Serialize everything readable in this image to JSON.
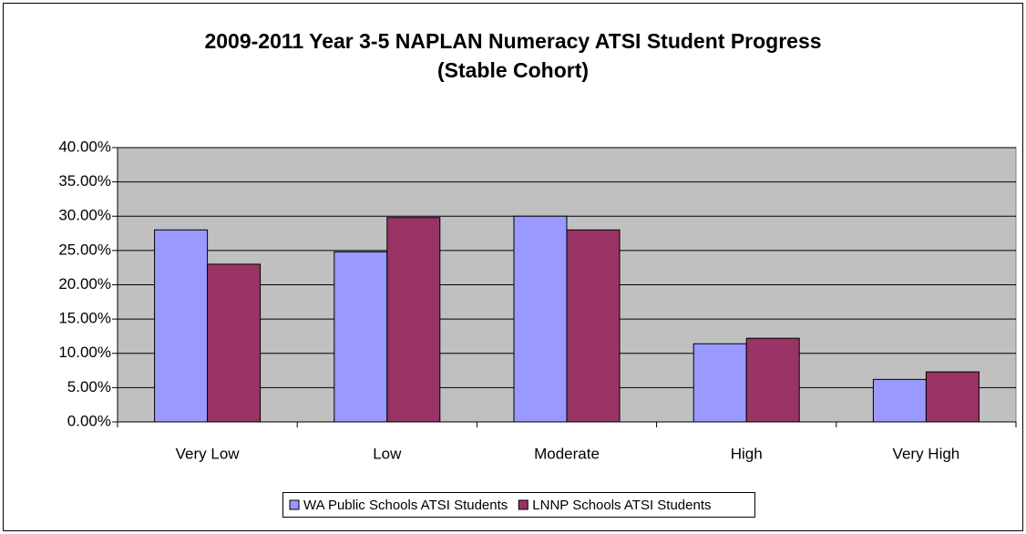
{
  "chart_data": {
    "type": "bar",
    "title": [
      "2009-2011 Year 3-5 NAPLAN Numeracy ATSI Student Progress",
      "(Stable Cohort)"
    ],
    "categories": [
      "Very Low",
      "Low",
      "Moderate",
      "High",
      "Very High"
    ],
    "series": [
      {
        "name": "WA Public Schools ATSI Students",
        "color": "#9999ff",
        "values": [
          28.0,
          24.8,
          30.0,
          11.4,
          6.2
        ]
      },
      {
        "name": "LNNP Schools ATSI Students",
        "color": "#993366",
        "values": [
          23.0,
          29.8,
          28.0,
          12.2,
          7.3
        ]
      }
    ],
    "ylim": [
      0,
      40
    ],
    "yticks": [
      {
        "value": 0,
        "label": "0.00%"
      },
      {
        "value": 5,
        "label": "5.00%"
      },
      {
        "value": 10,
        "label": "10.00%"
      },
      {
        "value": 15,
        "label": "15.00%"
      },
      {
        "value": 20,
        "label": "20.00%"
      },
      {
        "value": 25,
        "label": "25.00%"
      },
      {
        "value": 30,
        "label": "30.00%"
      },
      {
        "value": 35,
        "label": "35.00%"
      },
      {
        "value": 40,
        "label": "40.00%"
      }
    ],
    "grid": true,
    "plot_background": "#c0c0c0",
    "legend": "bottom"
  }
}
